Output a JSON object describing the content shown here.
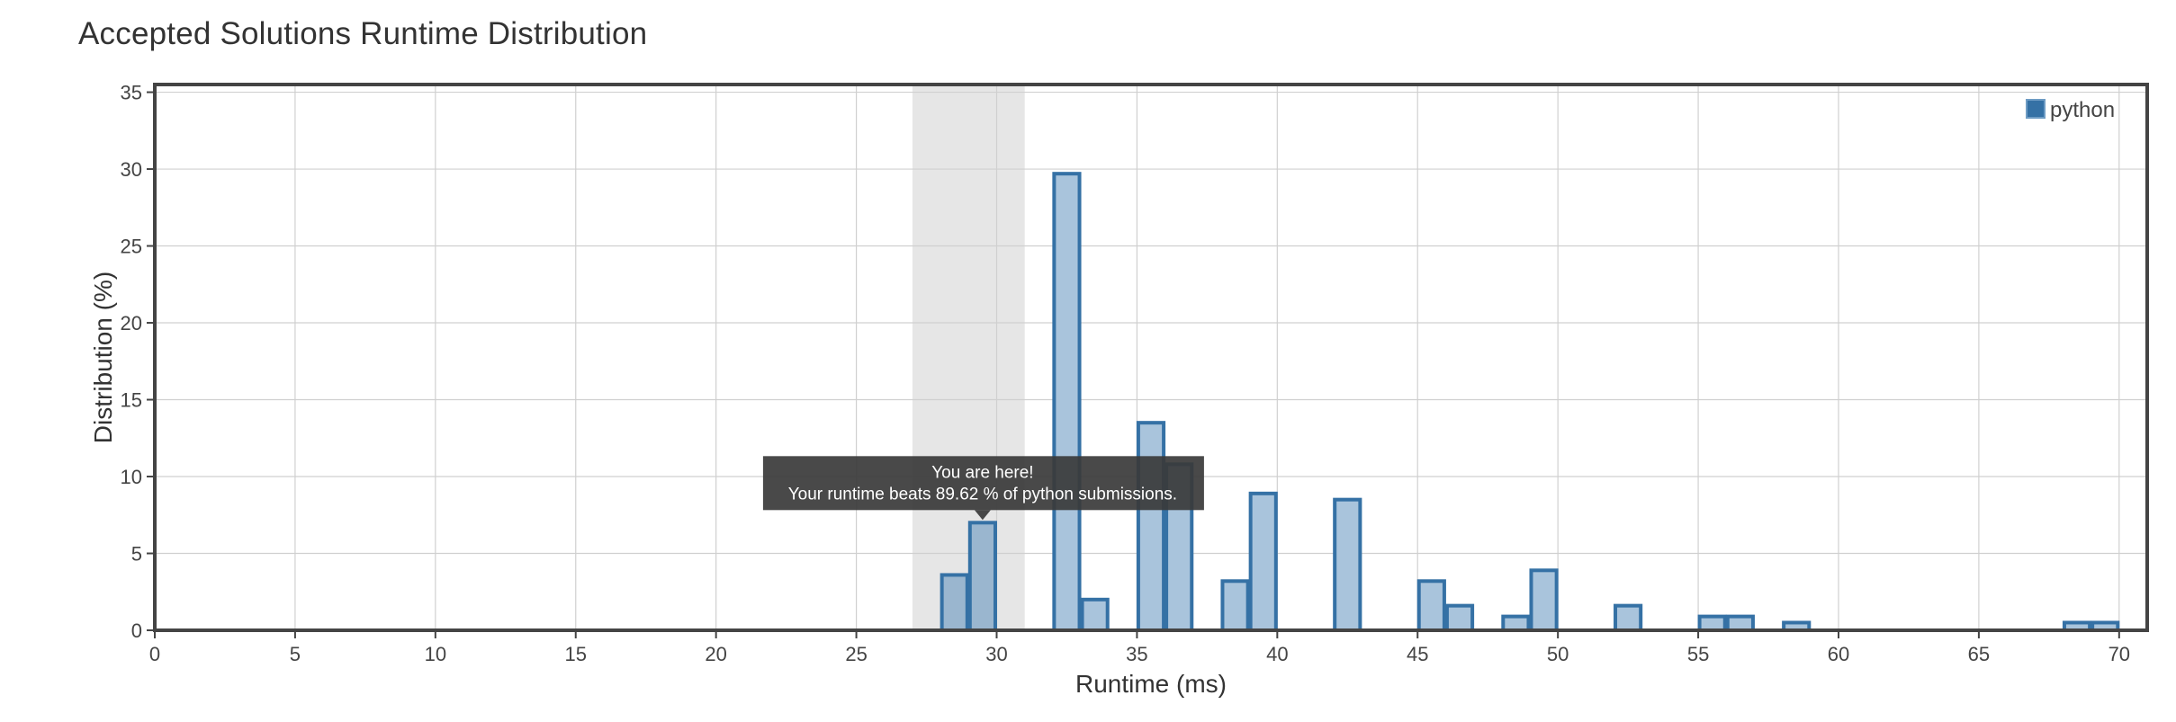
{
  "page": {
    "title": "Accepted Solutions Runtime Distribution"
  },
  "chart_data": {
    "type": "bar",
    "title": "Accepted Solutions Runtime Distribution",
    "xlabel": "Runtime (ms)",
    "ylabel": "Distribution (%)",
    "xlim": [
      0,
      71
    ],
    "ylim": [
      0,
      35.5
    ],
    "xticks": [
      0,
      5,
      10,
      15,
      20,
      25,
      30,
      35,
      40,
      45,
      50,
      55,
      60,
      65,
      70
    ],
    "yticks": [
      0,
      5,
      10,
      15,
      20,
      25,
      30,
      35
    ],
    "bin_width": 1,
    "grid": true,
    "legend_position": "top-right",
    "series": [
      {
        "name": "python",
        "color": "#3571a5",
        "fill": "#a9c4dc",
        "x": [
          28,
          29,
          32,
          33,
          35,
          36,
          38,
          39,
          42,
          45,
          46,
          48,
          49,
          52,
          55,
          56,
          58,
          68,
          69
        ],
        "values": [
          3.6,
          7.0,
          29.7,
          2.0,
          13.5,
          10.8,
          3.2,
          8.9,
          8.5,
          3.2,
          1.6,
          0.9,
          3.9,
          1.6,
          0.9,
          0.9,
          0.5,
          0.5,
          0.5
        ]
      }
    ],
    "highlight_range": [
      27,
      31
    ],
    "highlight_color": "#e6e6e6",
    "tooltip": {
      "line1": "You are here!",
      "line2": "Your runtime beats 89.62 % of python submissions.",
      "target_x": 29
    }
  }
}
